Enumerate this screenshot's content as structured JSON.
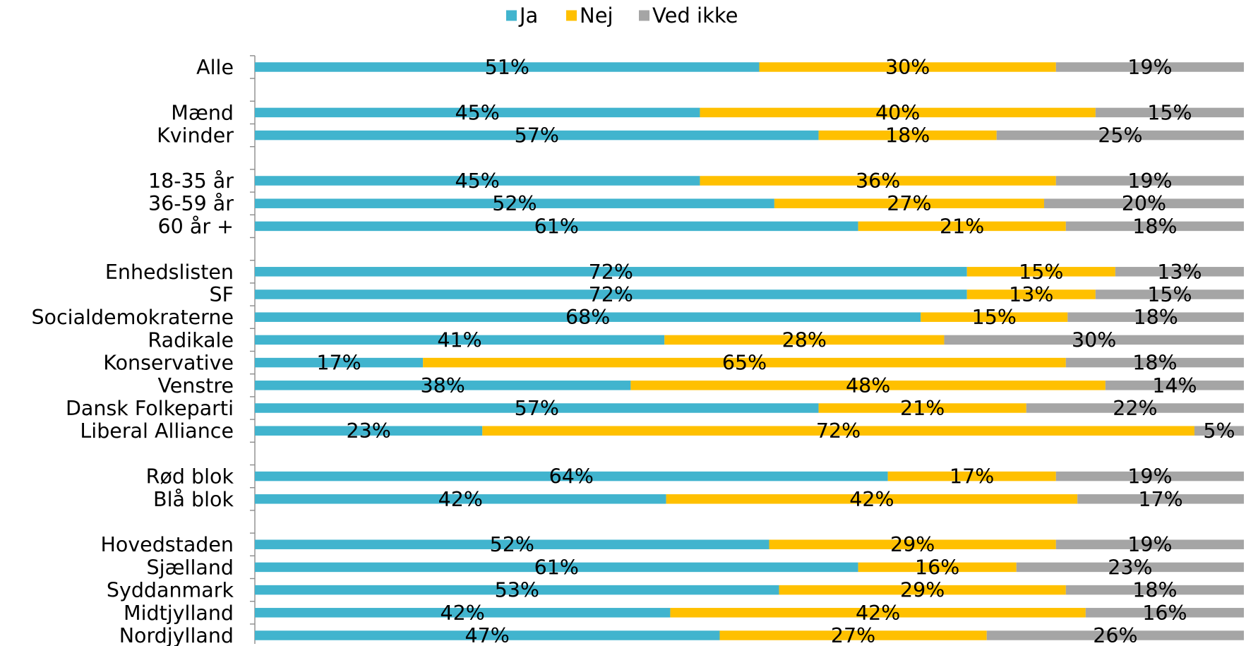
{
  "chart_data": {
    "type": "bar",
    "orientation": "horizontal",
    "stacked": "100%",
    "legend_position": "top",
    "grid": false,
    "categories": [
      "Alle",
      "Mænd",
      "Kvinder",
      "18-35 år",
      "36-59 år",
      "60 år +",
      "Enhedslisten",
      "SF",
      "Socialdemokraterne",
      "Radikale",
      "Konservative",
      "Venstre",
      "Dansk Folkeparti",
      "Liberal Alliance",
      "Rød blok",
      "Blå blok",
      "Hovedstaden",
      "Sjælland",
      "Syddanmark",
      "Midtjylland",
      "Nordjylland"
    ],
    "groups": [
      [
        "Alle"
      ],
      [
        "Mænd",
        "Kvinder"
      ],
      [
        "18-35 år",
        "36-59 år",
        "60 år +"
      ],
      [
        "Enhedslisten",
        "SF",
        "Socialdemokraterne",
        "Radikale",
        "Konservative",
        "Venstre",
        "Dansk Folkeparti",
        "Liberal Alliance"
      ],
      [
        "Rød blok",
        "Blå blok"
      ],
      [
        "Hovedstaden",
        "Sjælland",
        "Syddanmark",
        "Midtjylland",
        "Nordjylland"
      ]
    ],
    "series": [
      {
        "name": "Ja",
        "color": "#41b4ce",
        "values": [
          51,
          45,
          57,
          45,
          52,
          61,
          72,
          72,
          68,
          41,
          17,
          38,
          57,
          23,
          64,
          42,
          52,
          61,
          53,
          42,
          47
        ]
      },
      {
        "name": "Nej",
        "color": "#ffc000",
        "values": [
          30,
          40,
          18,
          36,
          27,
          21,
          15,
          13,
          15,
          28,
          65,
          48,
          21,
          72,
          17,
          42,
          29,
          16,
          29,
          42,
          27
        ]
      },
      {
        "name": "Ved ikke",
        "color": "#a5a5a5",
        "values": [
          19,
          15,
          25,
          19,
          20,
          18,
          13,
          15,
          18,
          30,
          18,
          14,
          22,
          5,
          19,
          17,
          19,
          23,
          18,
          16,
          26
        ]
      }
    ],
    "value_suffix": "%"
  }
}
